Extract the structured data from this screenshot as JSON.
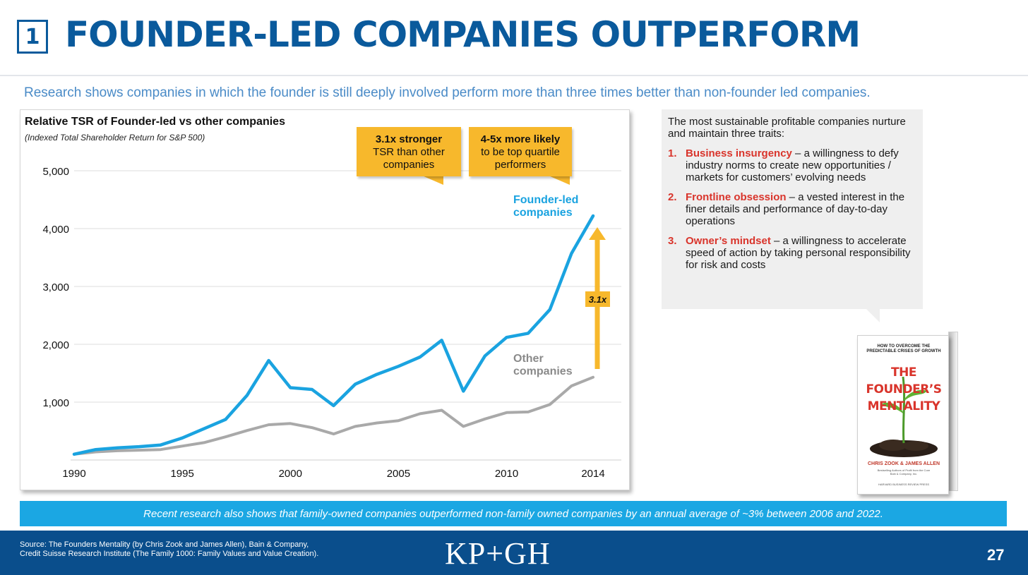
{
  "slide": {
    "number": "1",
    "title": "FOUNDER-LED COMPANIES OUTPERFORM",
    "subtitle": "Research shows companies in which the founder is still deeply involved perform more than three times better than non-founder led companies.",
    "page_number": "27",
    "logo_text": "KP+GH",
    "source_lines": [
      "Source: The Founders Mentality (by Chris Zook and James Allen), Bain & Company,",
      "Credit Suisse Research Institute (The Family 1000: Family Values and Value Creation)."
    ],
    "banner": "Recent research also shows that family-owned companies outperformed non-family owned companies by an annual average of ~3% between 2006 and 2022."
  },
  "callouts": [
    {
      "bold": "3.1x stronger",
      "line1": "TSR than other",
      "line2": "companies"
    },
    {
      "bold": "4-5x more likely",
      "line1": "to be top quartile",
      "line2": "performers"
    }
  ],
  "multiplier": "3.1x",
  "traits": {
    "intro": "The most sustainable profitable companies nurture and maintain three traits:",
    "items": [
      {
        "num": "1.",
        "name": "Business insurgency",
        "desc": " – a willingness to defy industry norms to create new opportunities / markets for customers’ evolving needs"
      },
      {
        "num": "2.",
        "name": "Frontline obsession",
        "desc": " – a vested interest in the finer details and performance of day-to-day operations"
      },
      {
        "num": "3.",
        "name": "Owner’s mindset",
        "desc": " – a willingness to accelerate speed of action by taking personal responsibility for risk and costs"
      }
    ]
  },
  "book": {
    "top_line1": "HOW TO OVERCOME THE",
    "top_line2": "PREDICTABLE CRISES OF GROWTH",
    "title_line1": "THE",
    "title_line2": "FOUNDER’S",
    "title_line3": "MENTALITY",
    "authors": "CHRIS ZOOK & JAMES ALLEN",
    "tagline1": "Bestselling Authors of Profit from the Core",
    "tagline2": "Bain & Company, Inc.",
    "publisher": "HARVARD BUSINESS REVIEW PRESS"
  },
  "colors": {
    "title_blue": "#0a5a9c",
    "founder_line": "#1aa3e0",
    "other_line": "#a9a9a9",
    "callout": "#f7b82c",
    "trait_red": "#d9342b",
    "banner": "#1ba7e3",
    "footer": "#0a4e8c"
  },
  "chart_data": {
    "type": "line",
    "title": "Relative TSR of Founder-led vs other companies",
    "subtitle": "(Indexed Total Shareholder Return for S&P 500)",
    "xlabel": "",
    "ylabel": "",
    "x": [
      1990,
      1991,
      1992,
      1993,
      1994,
      1995,
      1996,
      1997,
      1998,
      1999,
      2000,
      2001,
      2002,
      2003,
      2004,
      2005,
      2006,
      2007,
      2008,
      2009,
      2010,
      2011,
      2012,
      2013,
      2014
    ],
    "xticks": [
      1990,
      1995,
      2000,
      2005,
      2010,
      2014
    ],
    "xtick_labels": [
      "1990",
      "1995",
      "2000",
      "2005",
      "2010",
      "2014"
    ],
    "yticks": [
      1000,
      2000,
      3000,
      4000,
      5000
    ],
    "ytick_labels": [
      "1,000",
      "2,000",
      "3,000",
      "4,000",
      "5,000"
    ],
    "xlim": [
      1990,
      2014
    ],
    "ylim": [
      0,
      5000
    ],
    "grid": "horizontal",
    "legend": "inline labels at right",
    "series": [
      {
        "name": "Founder-led companies",
        "label_line1": "Founder-led",
        "label_line2": "companies",
        "values": [
          100,
          180,
          210,
          230,
          260,
          380,
          540,
          700,
          1120,
          1720,
          1250,
          1220,
          940,
          1310,
          1480,
          1620,
          1780,
          2070,
          1190,
          1800,
          2120,
          2190,
          2600,
          3570,
          4220
        ]
      },
      {
        "name": "Other companies",
        "label_line1": "Other",
        "label_line2": "companies",
        "values": [
          100,
          140,
          160,
          170,
          180,
          240,
          300,
          400,
          510,
          610,
          630,
          560,
          450,
          580,
          640,
          680,
          800,
          860,
          580,
          710,
          820,
          830,
          960,
          1280,
          1430
        ]
      }
    ]
  }
}
